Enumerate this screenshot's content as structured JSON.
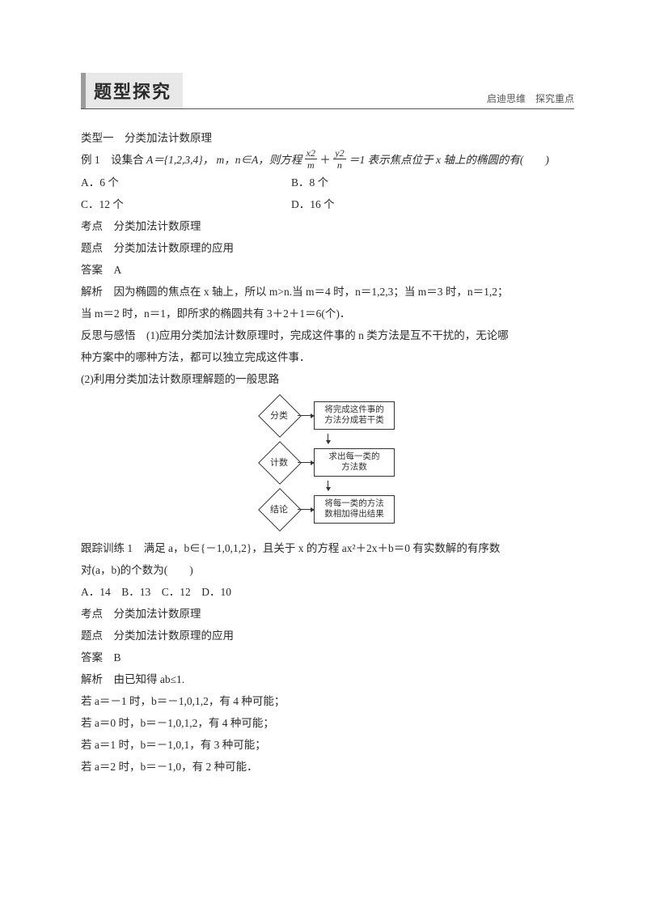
{
  "header": {
    "title": "题型探究",
    "subtitle": "启迪思维　探究重点"
  },
  "sec1_title": "类型一　分类加法计数原理",
  "ex1": {
    "lead_a": "例 1　设集合",
    "lead_set": "A＝{1,2,3,4}，",
    "lead_b": "m，n∈A，则方程",
    "frac1_num": "x2",
    "frac1_den": "m",
    "plus": "＋",
    "frac2_num": "y2",
    "frac2_den": "n",
    "lead_c": "＝1 表示焦点位于 x 轴上的椭圆的有(　　)",
    "optA": "A．6 个",
    "optB": "B．8 个",
    "optC": "C．12 个",
    "optD": "D．16 个",
    "kd": "考点　分类加法计数原理",
    "td": "题点　分类加法计数原理的应用",
    "ans": "答案　A",
    "jx1": "解析　因为椭圆的焦点在 x 轴上，所以 m>n.当 m＝4 时，n＝1,2,3；当 m＝3 时，n＝1,2；",
    "jx2": "当 m＝2 时，n＝1，即所求的椭圆共有 3＋2＋1＝6(个)．",
    "fs1": "反思与感悟　(1)应用分类加法计数原理时，完成这件事的 n 类方法是互不干扰的，无论哪",
    "fs2": "种方案中的哪种方法，都可以独立完成这件事．",
    "fs3": "(2)利用分类加法计数原理解题的一般思路"
  },
  "flow": {
    "n1": "分类",
    "b1a": "将完成这件事的",
    "b1b": "方法分成若干类",
    "n2": "计数",
    "b2a": "求出每一类的",
    "b2b": "方法数",
    "n3": "结论",
    "b3a": "将每一类的方法",
    "b3b": "数相加得出结果"
  },
  "tr1": {
    "l1": "跟踪训练 1　满足 a，b∈{－1,0,1,2}，且关于 x 的方程 ax²＋2x＋b＝0 有实数解的有序数",
    "l2": "对(a，b)的个数为(　　)",
    "opts": "A．14　B．13　C．12　D．10",
    "kd": "考点　分类加法计数原理",
    "td": "题点　分类加法计数原理的应用",
    "ans": "答案　B",
    "jx0": "解析　由已知得 ab≤1.",
    "jx1": "若 a＝－1 时，b＝－1,0,1,2，有 4 种可能；",
    "jx2": "若 a＝0 时，b＝－1,0,1,2，有 4 种可能；",
    "jx3": "若 a＝1 时，b＝－1,0,1，有 3 种可能；",
    "jx4": "若 a＝2 时，b＝－1,0，有 2 种可能．"
  }
}
